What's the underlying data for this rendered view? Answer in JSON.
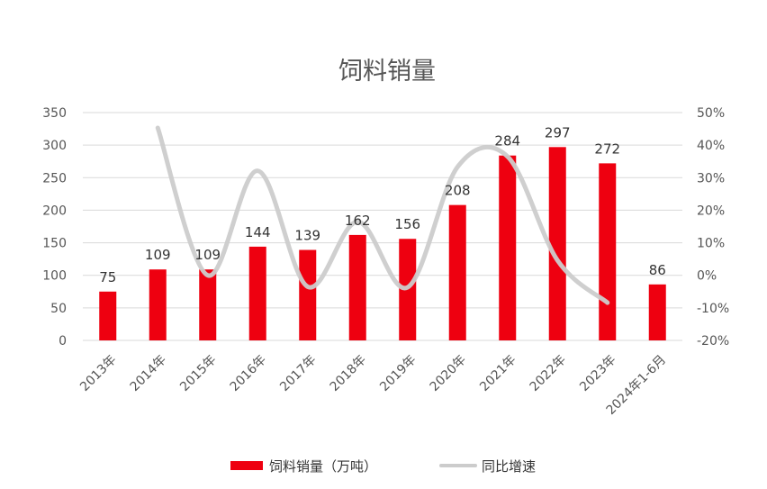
{
  "chart_data": {
    "type": "bar",
    "title": "饲料销量",
    "categories": [
      "2013年",
      "2014年",
      "2015年",
      "2016年",
      "2017年",
      "2018年",
      "2019年",
      "2020年",
      "2021年",
      "2022年",
      "2023年",
      "2024年1-6月"
    ],
    "series": [
      {
        "name": "饲料销量（万吨）",
        "type": "bar",
        "axis": "left",
        "color": "#ee0010",
        "values": [
          75,
          109,
          109,
          144,
          139,
          162,
          156,
          208,
          284,
          297,
          272,
          86
        ]
      },
      {
        "name": "同比增速",
        "type": "line",
        "axis": "right",
        "color": "#cccccc",
        "smooth": true,
        "values": [
          null,
          45.3,
          0,
          32.1,
          -3.5,
          16.5,
          -3.7,
          33.3,
          36.5,
          4.6,
          -8.4,
          null
        ]
      }
    ],
    "yleft": {
      "min": 0,
      "max": 350,
      "ticks": [
        "0",
        "50",
        "100",
        "150",
        "200",
        "250",
        "300",
        "350"
      ]
    },
    "yright": {
      "min": -20,
      "max": 50,
      "ticks": [
        "-20%",
        "-10%",
        "0%",
        "10%",
        "20%",
        "30%",
        "40%",
        "50%"
      ]
    },
    "grid": true,
    "legend_position": "bottom"
  }
}
